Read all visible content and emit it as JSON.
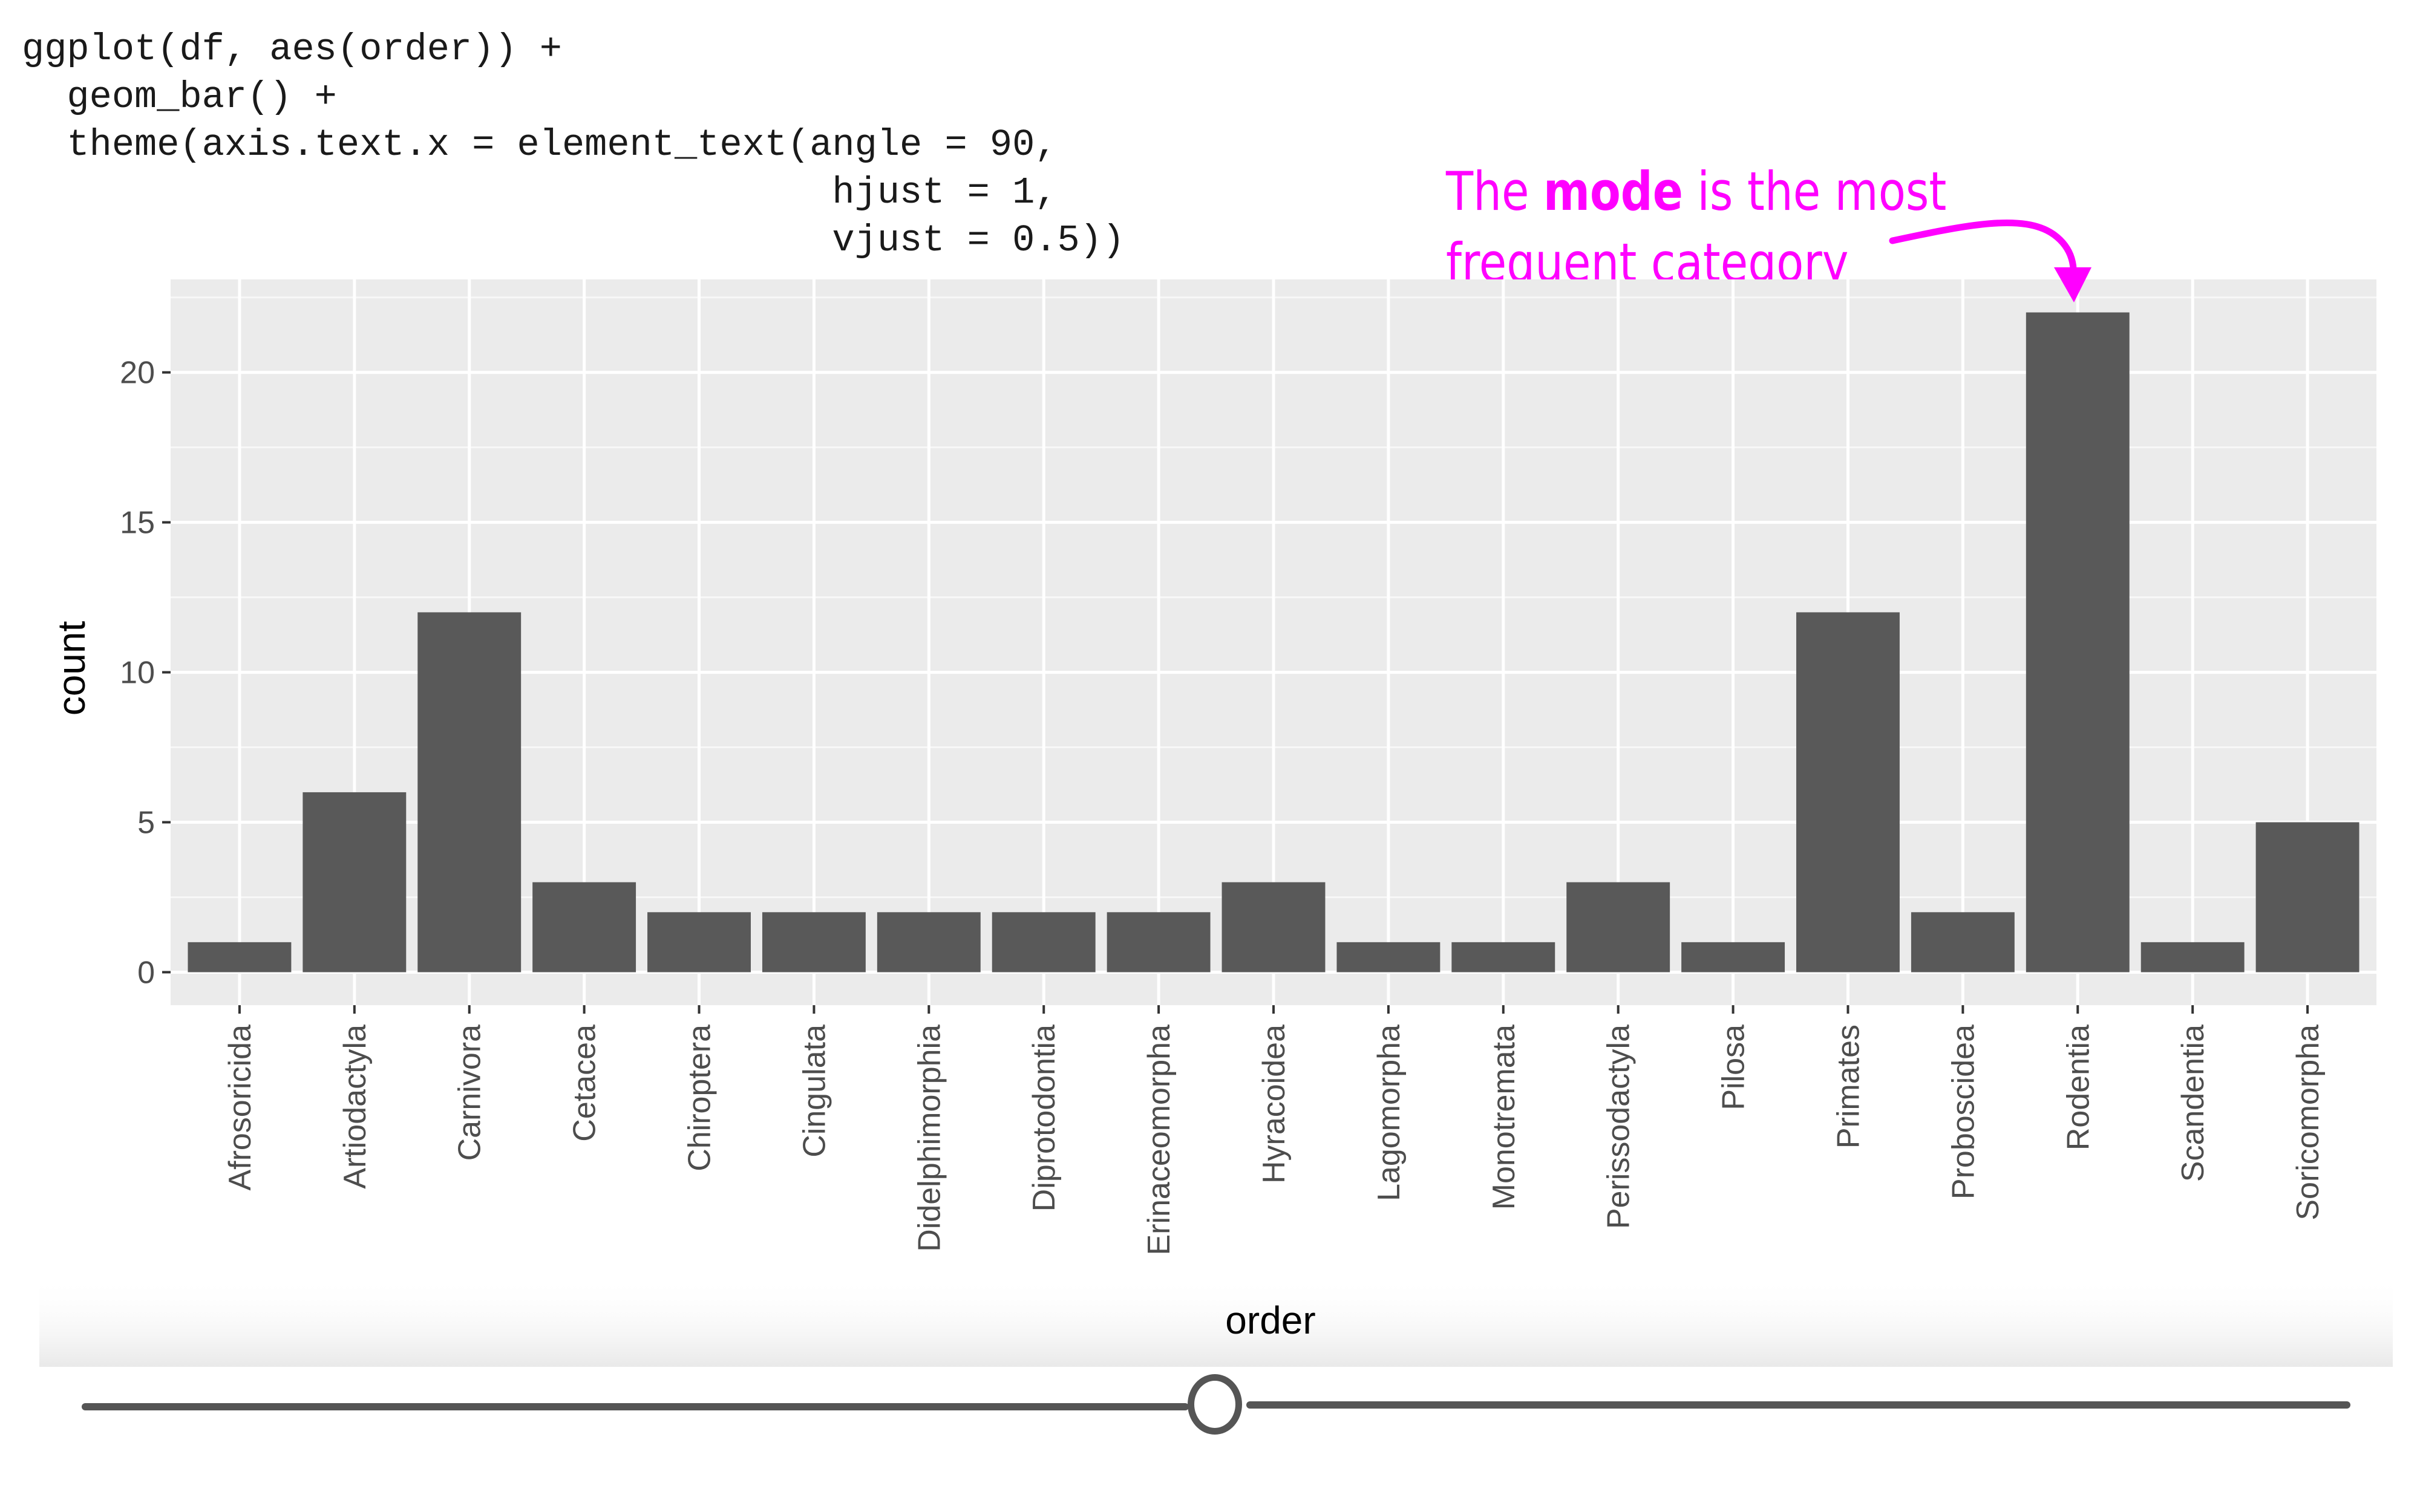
{
  "code": {
    "line1": "ggplot(df, aes(order)) +",
    "line2": "  geom_bar() +",
    "line3": "  theme(axis.text.x = element_text(angle = 90,",
    "line4": "                                    hjust = 1,",
    "line5": "                                    vjust = 0.5))"
  },
  "annotation": {
    "prefix": "The ",
    "bold": "mode",
    "suffix": " is the most",
    "line2": "frequent category",
    "color": "#ff00ff"
  },
  "chart_data": {
    "type": "bar",
    "categories": [
      "Afrosoricida",
      "Artiodactyla",
      "Carnivora",
      "Cetacea",
      "Chiroptera",
      "Cingulata",
      "Didelphimorphia",
      "Diprotodontia",
      "Erinaceomorpha",
      "Hyracoidea",
      "Lagomorpha",
      "Monotremata",
      "Perissodactyla",
      "Pilosa",
      "Primates",
      "Proboscidea",
      "Rodentia",
      "Scandentia",
      "Soricomorpha"
    ],
    "values": [
      1,
      6,
      12,
      3,
      2,
      2,
      2,
      2,
      2,
      3,
      1,
      1,
      3,
      1,
      12,
      2,
      22,
      1,
      5
    ],
    "xlabel": "order",
    "ylabel": "count",
    "ylim": [
      -1.1,
      23.1
    ],
    "yticks": [
      0,
      5,
      10,
      15,
      20
    ],
    "ytick_labels": [
      "0",
      "5",
      "10",
      "15",
      "20"
    ],
    "grid": true,
    "bar_color": "#595959",
    "panel_color": "#ebebeb"
  },
  "slider": {
    "value": 0.5
  }
}
